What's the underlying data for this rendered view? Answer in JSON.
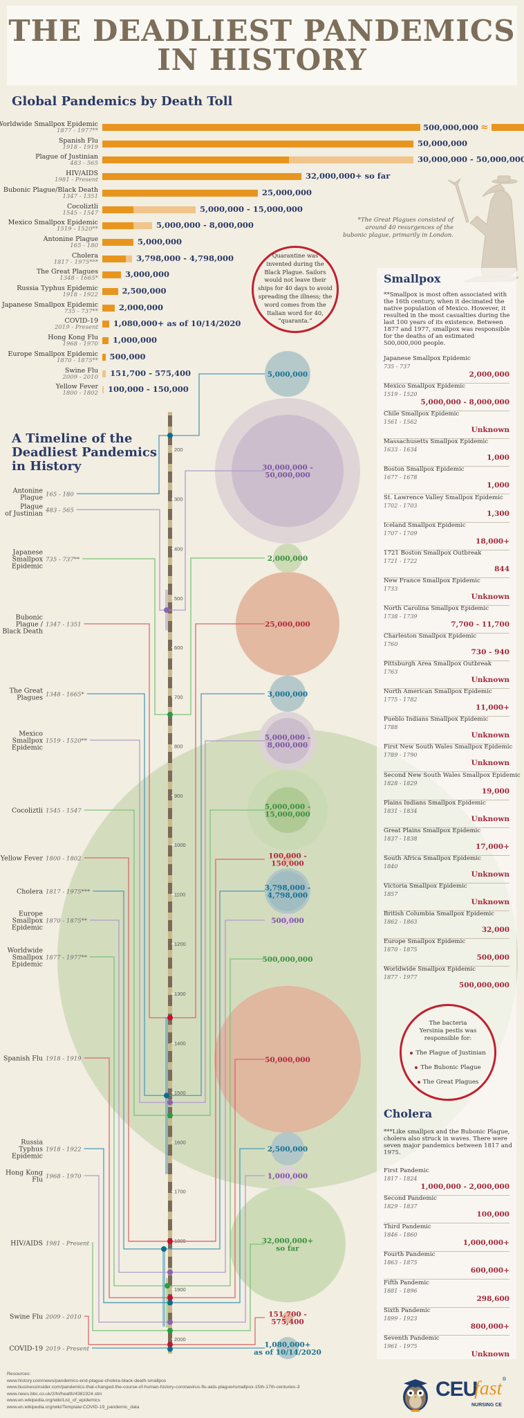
{
  "header": {
    "title_line1": "THE DEADLIEST PANDEMICS",
    "title_line2": "IN HISTORY"
  },
  "colors": {
    "orange": "#e8951f",
    "orange_light": "#f0c48a",
    "navy": "#2b3a67",
    "red": "#c0202f",
    "blue": "#2e8aa8",
    "purple": "#a98bc4",
    "green": "#6dbb6a",
    "bg": "#f2eee2"
  },
  "chart_data": {
    "type": "bar",
    "title": "Global Pandemics by Death Toll",
    "orientation": "horizontal",
    "unit": "deaths (millions)",
    "series": [
      {
        "name": "Worldwide Smallpox Epidemic",
        "dates": "1877 - 1977**",
        "low": 500,
        "high": 500,
        "label": "500,000,000",
        "axis_break": true
      },
      {
        "name": "Spanish Flu",
        "dates": "1918 - 1919",
        "low": 50,
        "high": 50,
        "label": "50,000,000"
      },
      {
        "name": "Plague of Justinian",
        "dates": "483 - 565",
        "low": 30,
        "high": 50,
        "label": "30,000,000 - 50,000,000"
      },
      {
        "name": "HIV/AIDS",
        "dates": "1981 - Present",
        "low": 32,
        "high": 32,
        "label": "32,000,000+ so far"
      },
      {
        "name": "Bubonic Plague/Black Death",
        "dates": "1347 - 1351",
        "low": 25,
        "high": 25,
        "label": "25,000,000"
      },
      {
        "name": "Cocoliztli",
        "dates": "1545 - 1547",
        "low": 5,
        "high": 15,
        "label": "5,000,000 - 15,000,000"
      },
      {
        "name": "Mexico Smallpox Epidemic",
        "dates": "1519 - 1520**",
        "low": 5,
        "high": 8,
        "label": "5,000,000 - 8,000,000"
      },
      {
        "name": "Antonine Plague",
        "dates": "165 - 180",
        "low": 5,
        "high": 5,
        "label": "5,000,000"
      },
      {
        "name": "Cholera",
        "dates": "1817 - 1975***",
        "low": 3.798,
        "high": 4.798,
        "label": "3,798,000 - 4,798,000"
      },
      {
        "name": "The Great Plagues",
        "dates": "1348 - 1665*",
        "low": 3,
        "high": 3,
        "label": "3,000,000"
      },
      {
        "name": "Russia Typhus Epidemic",
        "dates": "1918 - 1922",
        "low": 2.5,
        "high": 2.5,
        "label": "2,500,000"
      },
      {
        "name": "Japanese Smallpox Epidemic",
        "dates": "735 - 737**",
        "low": 2,
        "high": 2,
        "label": "2,000,000"
      },
      {
        "name": "COVID-19",
        "dates": "2019 - Present",
        "low": 1.08,
        "high": 1.08,
        "label": "1,080,000+ as of 10/14/2020"
      },
      {
        "name": "Hong Kong Flu",
        "dates": "1968 - 1970",
        "low": 1,
        "high": 1,
        "label": "1,000,000"
      },
      {
        "name": "Europe Smallpox Epidemic",
        "dates": "1870 - 1875**",
        "low": 0.5,
        "high": 0.5,
        "label": "500,000"
      },
      {
        "name": "Swine Flu",
        "dates": "2009 - 2010",
        "low": 0.1517,
        "high": 0.5754,
        "label": "151,700 - 575,400"
      },
      {
        "name": "Yellow Fever",
        "dates": "1800 - 1802",
        "low": 0.1,
        "high": 0.15,
        "label": "100,000 - 150,000"
      }
    ]
  },
  "notes": {
    "great_plagues": [
      "*The Great Plagues consisted of",
      "around 40 resurgences of the",
      "bubonic plague, primarily in London."
    ],
    "quarantine": [
      "Quarantine was",
      "invented during the",
      "Black Plague. Sailors",
      "would not leave their",
      "ships for 40 days to avoid",
      "spreading the illness; the",
      "word comes from the",
      "Italian word for 40,",
      "“quaranta.”"
    ]
  },
  "timeline": {
    "title": [
      "A Timeline of the",
      "Deadliest Pandemics",
      "in History"
    ],
    "axis_ticks": [
      200,
      300,
      400,
      500,
      600,
      700,
      800,
      900,
      1000,
      1100,
      1200,
      1300,
      1400,
      1500,
      1600,
      1700,
      1800,
      1900,
      2000
    ],
    "items": [
      {
        "name": [
          "Antonine",
          "Plague"
        ],
        "dates": "165 - 180",
        "start": 165,
        "end": 180,
        "dot_year": 172,
        "value": [
          "5,000,000"
        ],
        "color": "blue"
      },
      {
        "name": [
          "Plague",
          "of Justinian"
        ],
        "dates": "483 - 565",
        "start": 483,
        "end": 565,
        "dot_year": 524,
        "value": [
          "30,000,000 -",
          "50,000,000"
        ],
        "color": "purple"
      },
      {
        "name": [
          "Japanese",
          "Smallpox",
          "Epidemic"
        ],
        "dates": "735 - 737**",
        "start": 735,
        "end": 737,
        "dot_year": 736,
        "value": [
          "2,000,000"
        ],
        "color": "green"
      },
      {
        "name": [
          "Bubonic",
          "Plague /",
          "Black Death"
        ],
        "dates": "1347 - 1351",
        "start": 1347,
        "end": 1351,
        "dot_year": 1349,
        "value": [
          "25,000,000"
        ],
        "color": "red"
      },
      {
        "name": [
          "The Great",
          "Plagues"
        ],
        "dates": "1348 - 1665*",
        "start": 1348,
        "end": 1665,
        "dot_year": 1506,
        "value": [
          "3,000,000"
        ],
        "color": "blue"
      },
      {
        "name": [
          "Mexico",
          "Smallpox",
          "Epidemic"
        ],
        "dates": "1519 - 1520**",
        "start": 1519,
        "end": 1520,
        "dot_year": 1520,
        "value": [
          "5,000,000 -",
          "8,000,000"
        ],
        "color": "purple"
      },
      {
        "name": [
          "Cocoliztli"
        ],
        "dates": "1545 - 1547",
        "start": 1545,
        "end": 1547,
        "dot_year": 1546,
        "value": [
          "5,000,000 -",
          "15,000,000"
        ],
        "color": "green"
      },
      {
        "name": [
          "Yellow Fever"
        ],
        "dates": "1800 - 1802",
        "start": 1800,
        "end": 1802,
        "dot_year": 1801,
        "value": [
          "100,000 -",
          "150,000"
        ],
        "color": "red"
      },
      {
        "name": [
          "Cholera"
        ],
        "dates": "1817 - 1975***",
        "start": 1817,
        "end": 1975,
        "dot_year": 1817,
        "value": [
          "3,798,000 -",
          "4,798,000"
        ],
        "color": "blue"
      },
      {
        "name": [
          "Europe",
          "Smallpox",
          "Epidemic"
        ],
        "dates": "1870 - 1875**",
        "start": 1870,
        "end": 1875,
        "dot_year": 1865,
        "value": [
          "500,000"
        ],
        "color": "purple"
      },
      {
        "name": [
          "Worldwide",
          "Smallpox",
          "Epidemic"
        ],
        "dates": "1877 - 1977**",
        "start": 1877,
        "end": 1977,
        "dot_year": 1893,
        "value": [
          "500,000,000"
        ],
        "color": "green"
      },
      {
        "name": [
          "Spanish Flu"
        ],
        "dates": "1918 - 1919",
        "start": 1918,
        "end": 1919,
        "dot_year": 1917,
        "value": [
          "50,000,000"
        ],
        "color": "red"
      },
      {
        "name": [
          "Russia",
          "Typhus",
          "Epidemic"
        ],
        "dates": "1918 - 1922",
        "start": 1918,
        "end": 1922,
        "dot_year": 1927,
        "value": [
          "2,500,000"
        ],
        "color": "blue"
      },
      {
        "name": [
          "Hong Kong",
          "Flu"
        ],
        "dates": "1968 - 1970",
        "start": 1968,
        "end": 1970,
        "dot_year": 1966,
        "value": [
          "1,000,000"
        ],
        "color": "purple"
      },
      {
        "name": [
          "HIV/AIDS"
        ],
        "dates": "1981 - Present",
        "start": 1981,
        "end": 2020,
        "dot_year": 1983,
        "value": [
          "32,000,000+",
          "so far"
        ],
        "color": "green"
      },
      {
        "name": [
          "Swine Flu"
        ],
        "dates": "2009 - 2010",
        "start": 2009,
        "end": 2010,
        "dot_year": 2011,
        "value": [
          "151,700 -",
          "575,400"
        ],
        "color": "red"
      },
      {
        "name": [
          "COVID-19"
        ],
        "dates": "2019 - Present",
        "start": 2019,
        "end": 2020,
        "dot_year": 2020,
        "value": [
          "1,080,000+",
          "as of 10/14/2020"
        ],
        "color": "blue"
      }
    ]
  },
  "smallpox": {
    "title": "Smallpox",
    "text": "**Smallpox is most often associated with the 16th century, when it decimated the native population of Mexico. However, it resulted in the most casualties during the last 100 years of its existence. Between 1877 and 1977, smallpox was responsible for the deaths of an estimated 500,000,000 people.",
    "items": [
      {
        "name": "Japanese Smallpox Epidemic",
        "dates": "735 - 737",
        "value": "2,000,000"
      },
      {
        "name": "Mexico Smallpox Epidemic",
        "dates": "1519 - 1520",
        "value": "5,000,000 - 8,000,000"
      },
      {
        "name": "Chile Smallpox Epidemic",
        "dates": "1561 - 1562",
        "value": "Unknown"
      },
      {
        "name": "Massachusetts Smallpox Epidemic",
        "dates": "1633 - 1634",
        "value": "1,000"
      },
      {
        "name": "Boston Smallpox Epidemic",
        "dates": "1677 - 1678",
        "value": "1,000"
      },
      {
        "name": "St. Lawrence Valley Smallpox Epidemic",
        "dates": "1702 - 1703",
        "value": "1,300"
      },
      {
        "name": "Iceland Smallpox Epidemic",
        "dates": "1707 - 1709",
        "value": "18,000+"
      },
      {
        "name": "1721 Boston Smallpox Outbreak",
        "dates": "1721 - 1722",
        "value": "844"
      },
      {
        "name": "New France Smallpox Epidemic",
        "dates": "1733",
        "value": "Unknown"
      },
      {
        "name": "North Carolina Smallpox Epidemic",
        "dates": "1738 - 1739",
        "value": "7,700 - 11,700"
      },
      {
        "name": "Charleston Smallpox Epidemic",
        "dates": "1760",
        "value": "730 - 940"
      },
      {
        "name": "Pittsburgh Area Smallpox Outbreak",
        "dates": "1763",
        "value": "Unknown"
      },
      {
        "name": "North American Smallpox Epidemic",
        "dates": "1775 - 1782",
        "value": "11,000+"
      },
      {
        "name": "Pueblo Indians Smallpox Epidemic",
        "dates": "1788",
        "value": "Unknown"
      },
      {
        "name": "First New South Wales Smallpox Epidemic",
        "dates": "1789 - 1790",
        "value": "Unknown"
      },
      {
        "name": "Second New South Wales Smallpox Epidemic",
        "dates": "1828 - 1829",
        "value": "19,000"
      },
      {
        "name": "Plains Indians Smallpox Epidemic",
        "dates": "1831 - 1834",
        "value": "Unknown"
      },
      {
        "name": "Great Plains Smallpox Epidemic",
        "dates": "1837 - 1838",
        "value": "17,000+"
      },
      {
        "name": "South Africa Smallpox Epidemic",
        "dates": "1840",
        "value": "Unknown"
      },
      {
        "name": "Victoria Smallpox Epidemic",
        "dates": "1857",
        "value": "Unknown"
      },
      {
        "name": "British Columbia Smallpox Epidemic",
        "dates": "1862 - 1863",
        "value": "32,000"
      },
      {
        "name": "Europe Smallpox Epidemic",
        "dates": "1870 - 1875",
        "value": "500,000"
      },
      {
        "name": "Worldwide Smallpox Epidemic",
        "dates": "1877 - 1977",
        "value": "500,000,000"
      }
    ]
  },
  "bacteria": {
    "intro": [
      "The bacteria",
      "Yersinia pestis was",
      "responsible for:"
    ],
    "items": [
      "The Plague of Justinian",
      "The Bubonic Plague",
      "The Great Plagues"
    ]
  },
  "cholera": {
    "title": "Cholera",
    "text": "***Like smallpox and the Bubonic Plague, cholera also struck in waves. There were seven major pandemics between 1817 and 1975.",
    "items": [
      {
        "name": "First Pandemic",
        "dates": "1817 - 1824",
        "value": "1,000,000 - 2,000,000"
      },
      {
        "name": "Second Pandemic",
        "dates": "1829 - 1837",
        "value": "100,000"
      },
      {
        "name": "Third Pandemic",
        "dates": "1846 - 1860",
        "value": "1,000,000+"
      },
      {
        "name": "Fourth Pandemic",
        "dates": "1863 - 1875",
        "value": "600,000+"
      },
      {
        "name": "Fifth Pandemic",
        "dates": "1881 - 1896",
        "value": "298,600"
      },
      {
        "name": "Sixth Pandemic",
        "dates": "1899 - 1923",
        "value": "800,000+"
      },
      {
        "name": "Seventh Pandemic",
        "dates": "1961 - 1975",
        "value": "Unknown"
      }
    ]
  },
  "resources": {
    "label": "Resources:",
    "links": [
      "www.history.com/news/pandemics-end-plague-cholera-black-death-smallpox",
      "www.businessinsider.com/pandemics-that-changed-the-course-of-human-history-coronavirus-flu-aids-plague#smallpox-15th-17th-centuries-3",
      "www.news.bbc.co.uk/2/hi/health/4381924.stm",
      "www.en.wikipedia.org/wiki/List_of_epidemics",
      "www.en.wikipedia.org/wiki/Template:COVID-19_pandemic_data"
    ]
  },
  "logo": {
    "ceu": "CEU",
    "fast": "fast",
    "sub": "NURSING CE",
    "reg": "®"
  }
}
